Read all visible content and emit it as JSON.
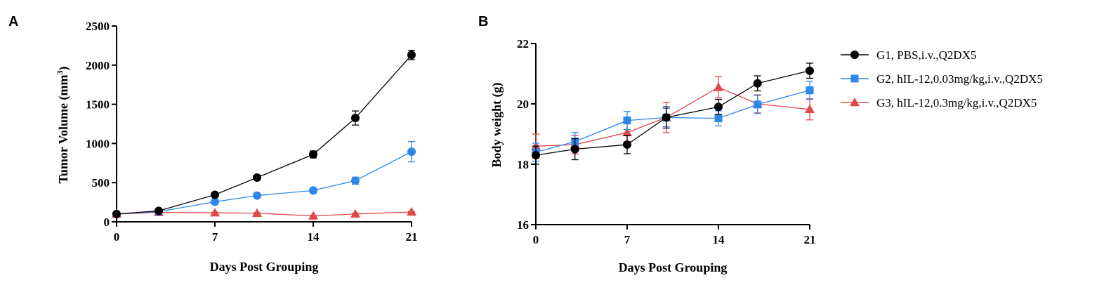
{
  "chart_data": [
    {
      "panel_label": "A",
      "type": "line",
      "xlabel": "Days Post Grouping",
      "ylabel": "Tumor Volume (mm",
      "ylabel_sup": "3",
      "ylabel_close": ")",
      "xlim": [
        0,
        21
      ],
      "ylim": [
        0,
        2500
      ],
      "xticks": [
        0,
        7,
        14,
        21
      ],
      "yticks": [
        0,
        500,
        1000,
        1500,
        2000,
        2500
      ],
      "x": [
        0,
        3,
        7,
        10,
        14,
        17,
        21
      ],
      "series": [
        {
          "name": "G1, PBS,i.v.,Q2DX5",
          "color": "#000000",
          "marker": "circle",
          "values": [
            100,
            140,
            345,
            565,
            860,
            1325,
            2130
          ],
          "err": [
            10,
            15,
            25,
            30,
            45,
            90,
            60
          ]
        },
        {
          "name": "G2, hIL-12,0.03mg/kg,i.v.,Q2DX5",
          "color": "#2e86e8",
          "marker": "circle",
          "values": [
            100,
            130,
            255,
            335,
            400,
            525,
            895
          ],
          "err": [
            10,
            15,
            20,
            25,
            30,
            45,
            130
          ]
        },
        {
          "name": "G3, hIL-12,0.3mg/kg,i.v.,Q2DX5",
          "color": "#e0484c",
          "marker": "triangle",
          "values": [
            100,
            120,
            115,
            110,
            75,
            100,
            125
          ],
          "err": [
            8,
            8,
            8,
            8,
            6,
            8,
            8
          ]
        }
      ]
    },
    {
      "panel_label": "B",
      "type": "line",
      "xlabel": "Days Post Grouping",
      "ylabel": "Body weight (g)",
      "xlim": [
        0,
        21
      ],
      "ylim": [
        16,
        22
      ],
      "xticks": [
        0,
        7,
        14,
        21
      ],
      "yticks": [
        16,
        18,
        20,
        22
      ],
      "x": [
        0,
        3,
        7,
        10,
        14,
        17,
        21
      ],
      "legend": "right",
      "series": [
        {
          "name": "G1, PBS,i.v.,Q2DX5",
          "color": "#000000",
          "marker": "circle",
          "values": [
            18.3,
            18.5,
            18.65,
            19.55,
            19.9,
            20.68,
            21.1
          ],
          "err": [
            0.3,
            0.35,
            0.3,
            0.35,
            0.25,
            0.25,
            0.25
          ]
        },
        {
          "name": "G2, hIL-12,0.03mg/kg,i.v.,Q2DX5",
          "color": "#2e86e8",
          "marker": "square",
          "values": [
            18.4,
            18.75,
            19.45,
            19.55,
            19.52,
            19.98,
            20.45
          ],
          "err": [
            0.3,
            0.3,
            0.3,
            0.3,
            0.25,
            0.3,
            0.3
          ]
        },
        {
          "name": "G3, hIL-12,0.3mg/kg,i.v.,Q2DX5",
          "color": "#e0484c",
          "marker": "triangle",
          "values": [
            18.6,
            18.65,
            19.05,
            19.55,
            20.55,
            20.0,
            19.82
          ],
          "err": [
            0.4,
            0.3,
            0.3,
            0.5,
            0.35,
            0.3,
            0.35
          ]
        }
      ]
    }
  ]
}
